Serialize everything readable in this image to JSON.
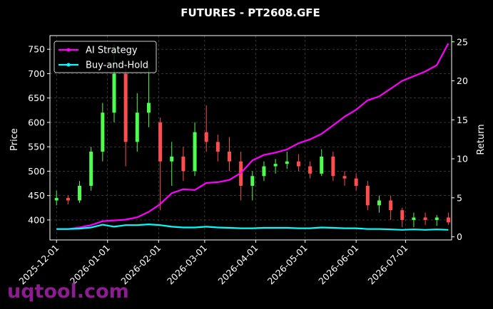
{
  "chart_data": {
    "type": "candlestick",
    "title": "FUTURES - PT2608.GFE",
    "ylabel": "Price",
    "y2label": "Return",
    "watermark": "uqtool.com",
    "x": [
      "2025-12-01",
      "2025-12-08",
      "2025-12-15",
      "2025-12-22",
      "2025-12-29",
      "2026-01-05",
      "2026-01-12",
      "2026-01-19",
      "2026-01-26",
      "2026-02-02",
      "2026-02-09",
      "2026-02-16",
      "2026-02-23",
      "2026-03-02",
      "2026-03-09",
      "2026-03-16",
      "2026-03-23",
      "2026-03-30",
      "2026-04-06",
      "2026-04-13",
      "2026-04-20",
      "2026-04-27",
      "2026-05-04",
      "2026-05-11",
      "2026-05-18",
      "2026-05-25",
      "2026-06-01",
      "2026-06-08",
      "2026-06-15",
      "2026-06-22",
      "2026-06-29",
      "2026-07-06",
      "2026-07-13",
      "2026-07-20",
      "2026-07-27"
    ],
    "open": [
      440,
      445,
      440,
      470,
      540,
      620,
      700,
      560,
      620,
      600,
      520,
      530,
      500,
      580,
      560,
      540,
      520,
      470,
      490,
      510,
      515,
      520,
      510,
      495,
      530,
      490,
      485,
      470,
      430,
      440,
      420,
      400,
      405,
      400,
      405
    ],
    "high": [
      460,
      450,
      480,
      550,
      640,
      760,
      720,
      660,
      720,
      610,
      560,
      550,
      600,
      635,
      575,
      570,
      540,
      500,
      520,
      525,
      540,
      535,
      520,
      545,
      540,
      500,
      495,
      480,
      450,
      450,
      425,
      415,
      415,
      410,
      415
    ],
    "low": [
      430,
      432,
      435,
      460,
      520,
      600,
      510,
      540,
      590,
      420,
      470,
      480,
      490,
      540,
      520,
      500,
      440,
      440,
      480,
      495,
      505,
      500,
      485,
      490,
      480,
      470,
      460,
      420,
      415,
      400,
      385,
      385,
      390,
      388,
      390
    ],
    "close": [
      445,
      440,
      470,
      540,
      620,
      700,
      560,
      620,
      640,
      520,
      530,
      500,
      580,
      560,
      540,
      520,
      470,
      490,
      510,
      515,
      520,
      510,
      495,
      530,
      490,
      485,
      470,
      430,
      440,
      420,
      400,
      405,
      400,
      405,
      395
    ],
    "up_color": "#4cff4c",
    "down_color": "#ff4c4c",
    "series": [
      {
        "name": "AI Strategy",
        "color": "#ff00ff",
        "axis": "y2",
        "values": [
          1.0,
          1.0,
          1.2,
          1.5,
          2.0,
          2.1,
          2.2,
          2.5,
          3.2,
          4.2,
          5.6,
          6.1,
          6.0,
          6.9,
          7.0,
          7.3,
          8.2,
          9.8,
          10.5,
          10.8,
          11.2,
          12.0,
          12.5,
          13.2,
          14.3,
          15.4,
          16.3,
          17.5,
          18.0,
          19.0,
          20.0,
          20.6,
          21.2,
          22.0,
          24.8
        ]
      },
      {
        "name": "Buy-and-Hold",
        "color": "#00ffff",
        "axis": "y2",
        "values": [
          1.0,
          1.0,
          1.05,
          1.2,
          1.55,
          1.3,
          1.5,
          1.5,
          1.6,
          1.5,
          1.3,
          1.2,
          1.2,
          1.3,
          1.2,
          1.15,
          1.1,
          1.1,
          1.15,
          1.15,
          1.15,
          1.1,
          1.1,
          1.2,
          1.15,
          1.1,
          1.1,
          1.0,
          1.0,
          0.95,
          0.9,
          0.95,
          0.9,
          0.95,
          0.9
        ]
      }
    ],
    "xlim": [
      "2025-11-27",
      "2026-07-29"
    ],
    "xticks": [
      "2025-12-01",
      "2026-01-01",
      "2026-02-01",
      "2026-03-01",
      "2026-04-01",
      "2026-05-01",
      "2026-06-01",
      "2026-07-01"
    ],
    "ylim": [
      359,
      778
    ],
    "yticks": [
      400,
      450,
      500,
      550,
      600,
      650,
      700,
      750
    ],
    "y2lim": [
      -0.4,
      25.8
    ],
    "y2ticks": [
      0,
      5,
      10,
      15,
      20,
      25
    ],
    "grid": true,
    "legend": "upper left"
  }
}
